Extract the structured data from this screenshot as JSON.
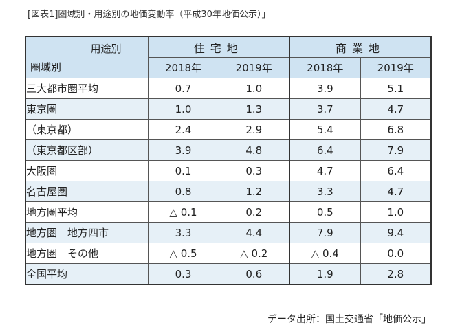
{
  "caption": "[図表1]圏域別・用途別の地価変動率（平成30年地価公示）」",
  "table": {
    "corner_top": "用途別",
    "corner_bottom": "圏域別",
    "groups": [
      "住宅地",
      "商業地"
    ],
    "years": [
      "2018年",
      "2019年",
      "2018年",
      "2019年"
    ],
    "rows": [
      {
        "label": "三大都市圏平均",
        "values": [
          "0.7",
          "1.0",
          "3.9",
          "5.1"
        ]
      },
      {
        "label": "東京圏",
        "values": [
          "1.0",
          "1.3",
          "3.7",
          "4.7"
        ]
      },
      {
        "label": "（東京都）",
        "values": [
          "2.4",
          "2.9",
          "5.4",
          "6.8"
        ]
      },
      {
        "label": "（東京都区部）",
        "values": [
          "3.9",
          "4.8",
          "6.4",
          "7.9"
        ]
      },
      {
        "label": "大阪圏",
        "values": [
          "0.1",
          "0.3",
          "4.7",
          "6.4"
        ]
      },
      {
        "label": "名古屋圏",
        "values": [
          "0.8",
          "1.2",
          "3.3",
          "4.7"
        ]
      },
      {
        "label": "地方圏平均",
        "values": [
          "△ 0.1",
          "0.2",
          "0.5",
          "1.0"
        ]
      },
      {
        "label": "地方圏　地方四市",
        "values": [
          "3.3",
          "4.4",
          "7.9",
          "9.4"
        ]
      },
      {
        "label": "地方圏　その他",
        "values": [
          "△ 0.5",
          "△ 0.2",
          "△ 0.4",
          "0.0"
        ]
      },
      {
        "label": "全国平均",
        "values": [
          "0.3",
          "0.6",
          "1.9",
          "2.8"
        ]
      }
    ]
  },
  "source": "データ出所：国土交通省「地価公示」"
}
